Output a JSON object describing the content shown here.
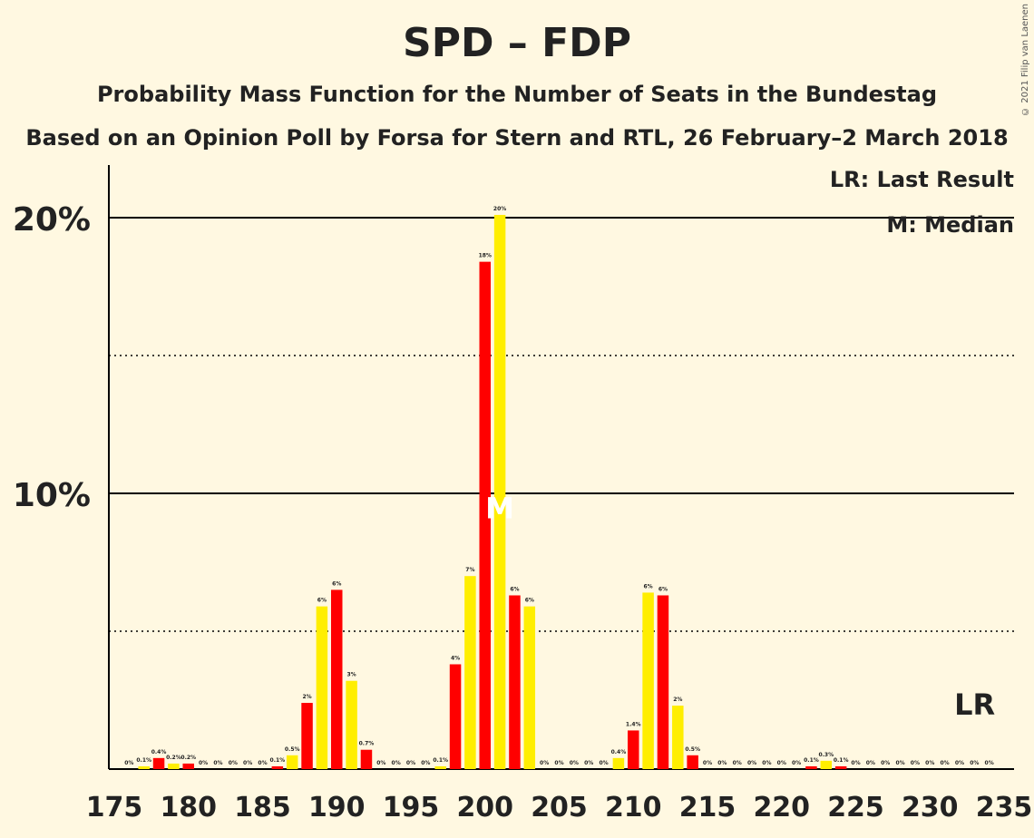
{
  "header": {
    "title": "SPD – FDP",
    "subtitle": "Probability Mass Function for the Number of Seats in the Bundestag",
    "source": "Based on an Opinion Poll by Forsa for Stern and RTL, 26 February–2 March 2018",
    "copyright": "© 2021 Filip van Laenen"
  },
  "legend": {
    "last_result": "LR: Last Result",
    "median": "M: Median"
  },
  "colors": {
    "background": "#fff8e1",
    "bar_red": "#ff0000",
    "bar_yellow": "#ffee00",
    "axis": "#000000",
    "text": "#222222"
  },
  "chart_data": {
    "type": "bar",
    "xlim": [
      175,
      235
    ],
    "ylim": [
      0,
      22
    ],
    "x_ticks": [
      175,
      180,
      185,
      190,
      195,
      200,
      205,
      210,
      215,
      220,
      225,
      230,
      235
    ],
    "y_ticks_solid": [
      {
        "value": 10,
        "label": "10%"
      },
      {
        "value": 20,
        "label": "20%"
      }
    ],
    "y_gridlines_dotted": [
      5,
      15
    ],
    "median_seat": 201,
    "median_marker": "M",
    "last_result_seat": 234,
    "last_result_marker": "LR",
    "bars": [
      {
        "seat": 176,
        "value": 0.0,
        "label": "0%",
        "color": "red"
      },
      {
        "seat": 177,
        "value": 0.1,
        "label": "0.1%",
        "color": "yellow"
      },
      {
        "seat": 178,
        "value": 0.4,
        "label": "0.4%",
        "color": "red"
      },
      {
        "seat": 179,
        "value": 0.2,
        "label": "0.2%",
        "color": "yellow"
      },
      {
        "seat": 180,
        "value": 0.2,
        "label": "0.2%",
        "color": "red"
      },
      {
        "seat": 181,
        "value": 0.0,
        "label": "0%",
        "color": "yellow"
      },
      {
        "seat": 182,
        "value": 0.0,
        "label": "0%",
        "color": "red"
      },
      {
        "seat": 183,
        "value": 0.0,
        "label": "0%",
        "color": "yellow"
      },
      {
        "seat": 184,
        "value": 0.0,
        "label": "0%",
        "color": "red"
      },
      {
        "seat": 185,
        "value": 0.0,
        "label": "0%",
        "color": "yellow"
      },
      {
        "seat": 186,
        "value": 0.1,
        "label": "0.1%",
        "color": "red"
      },
      {
        "seat": 187,
        "value": 0.5,
        "label": "0.5%",
        "color": "yellow"
      },
      {
        "seat": 188,
        "value": 2.4,
        "label": "2%",
        "color": "red"
      },
      {
        "seat": 189,
        "value": 5.9,
        "label": "6%",
        "color": "yellow"
      },
      {
        "seat": 190,
        "value": 6.5,
        "label": "6%",
        "color": "red"
      },
      {
        "seat": 191,
        "value": 3.2,
        "label": "3%",
        "color": "yellow"
      },
      {
        "seat": 192,
        "value": 0.7,
        "label": "0.7%",
        "color": "red"
      },
      {
        "seat": 193,
        "value": 0.0,
        "label": "0%",
        "color": "yellow"
      },
      {
        "seat": 194,
        "value": 0.0,
        "label": "0%",
        "color": "red"
      },
      {
        "seat": 195,
        "value": 0.0,
        "label": "0%",
        "color": "yellow"
      },
      {
        "seat": 196,
        "value": 0.0,
        "label": "0%",
        "color": "red"
      },
      {
        "seat": 197,
        "value": 0.1,
        "label": "0.1%",
        "color": "yellow"
      },
      {
        "seat": 198,
        "value": 3.8,
        "label": "4%",
        "color": "red"
      },
      {
        "seat": 199,
        "value": 7.0,
        "label": "7%",
        "color": "yellow"
      },
      {
        "seat": 200,
        "value": 18.4,
        "label": "18%",
        "color": "red"
      },
      {
        "seat": 201,
        "value": 20.1,
        "label": "20%",
        "color": "yellow"
      },
      {
        "seat": 202,
        "value": 6.3,
        "label": "6%",
        "color": "red"
      },
      {
        "seat": 203,
        "value": 5.9,
        "label": "6%",
        "color": "yellow"
      },
      {
        "seat": 204,
        "value": 0.0,
        "label": "0%",
        "color": "red"
      },
      {
        "seat": 205,
        "value": 0.0,
        "label": "0%",
        "color": "yellow"
      },
      {
        "seat": 206,
        "value": 0.0,
        "label": "0%",
        "color": "red"
      },
      {
        "seat": 207,
        "value": 0.0,
        "label": "0%",
        "color": "yellow"
      },
      {
        "seat": 208,
        "value": 0.0,
        "label": "0%",
        "color": "red"
      },
      {
        "seat": 209,
        "value": 0.4,
        "label": "0.4%",
        "color": "yellow"
      },
      {
        "seat": 210,
        "value": 1.4,
        "label": "1.4%",
        "color": "red"
      },
      {
        "seat": 211,
        "value": 6.4,
        "label": "6%",
        "color": "yellow"
      },
      {
        "seat": 212,
        "value": 6.3,
        "label": "6%",
        "color": "red"
      },
      {
        "seat": 213,
        "value": 2.3,
        "label": "2%",
        "color": "yellow"
      },
      {
        "seat": 214,
        "value": 0.5,
        "label": "0.5%",
        "color": "red"
      },
      {
        "seat": 215,
        "value": 0.0,
        "label": "0%",
        "color": "yellow"
      },
      {
        "seat": 216,
        "value": 0.0,
        "label": "0%",
        "color": "red"
      },
      {
        "seat": 217,
        "value": 0.0,
        "label": "0%",
        "color": "yellow"
      },
      {
        "seat": 218,
        "value": 0.0,
        "label": "0%",
        "color": "red"
      },
      {
        "seat": 219,
        "value": 0.0,
        "label": "0%",
        "color": "yellow"
      },
      {
        "seat": 220,
        "value": 0.0,
        "label": "0%",
        "color": "red"
      },
      {
        "seat": 221,
        "value": 0.0,
        "label": "0%",
        "color": "yellow"
      },
      {
        "seat": 222,
        "value": 0.1,
        "label": "0.1%",
        "color": "red"
      },
      {
        "seat": 223,
        "value": 0.3,
        "label": "0.3%",
        "color": "yellow"
      },
      {
        "seat": 224,
        "value": 0.1,
        "label": "0.1%",
        "color": "red"
      },
      {
        "seat": 225,
        "value": 0.0,
        "label": "0%",
        "color": "yellow"
      },
      {
        "seat": 226,
        "value": 0.0,
        "label": "0%",
        "color": "red"
      },
      {
        "seat": 227,
        "value": 0.0,
        "label": "0%",
        "color": "yellow"
      },
      {
        "seat": 228,
        "value": 0.0,
        "label": "0%",
        "color": "red"
      },
      {
        "seat": 229,
        "value": 0.0,
        "label": "0%",
        "color": "yellow"
      },
      {
        "seat": 230,
        "value": 0.0,
        "label": "0%",
        "color": "red"
      },
      {
        "seat": 231,
        "value": 0.0,
        "label": "0%",
        "color": "yellow"
      },
      {
        "seat": 232,
        "value": 0.0,
        "label": "0%",
        "color": "red"
      },
      {
        "seat": 233,
        "value": 0.0,
        "label": "0%",
        "color": "yellow"
      },
      {
        "seat": 234,
        "value": 0.0,
        "label": "0%",
        "color": "red"
      }
    ]
  }
}
